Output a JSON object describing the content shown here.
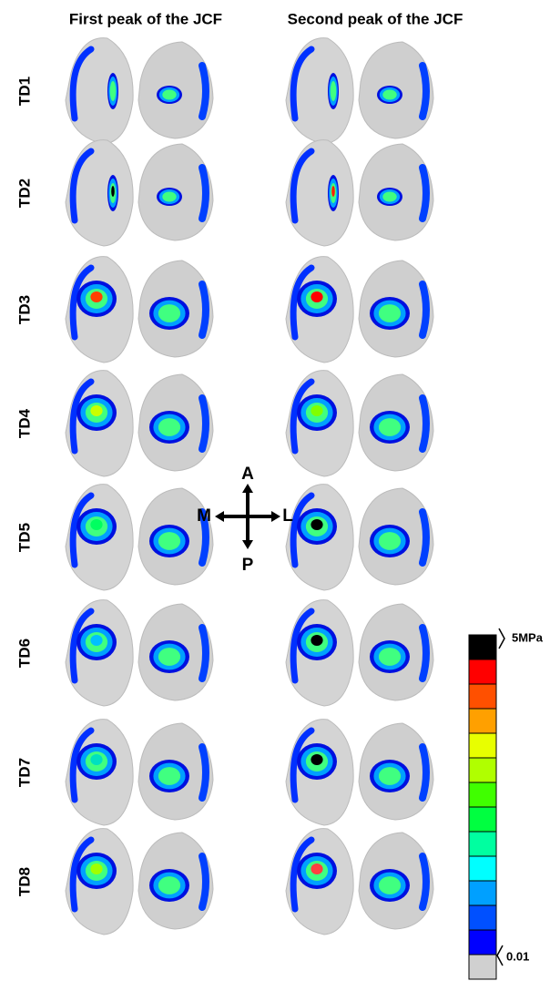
{
  "columns": [
    "First peak of the JCF",
    "Second peak of the JCF"
  ],
  "rows": [
    "TD1",
    "TD2",
    "TD3",
    "TD4",
    "TD5",
    "TD6",
    "TD7",
    "TD8"
  ],
  "directions": {
    "anterior": "A",
    "posterior": "P",
    "medial": "M",
    "lateral": "L"
  },
  "legend": {
    "max": "5MPa",
    "min": "0.01"
  }
}
